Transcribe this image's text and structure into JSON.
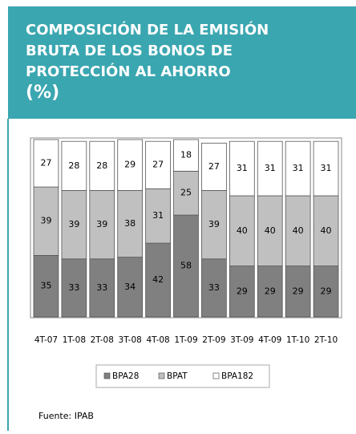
{
  "chart_data": {
    "type": "stacked_bar",
    "title_lines": [
      "COMPOSICIÓN DE LA EMISIÓN",
      "BRUTA DE LOS BONOS DE",
      "PROTECCIÓN AL AHORRO",
      "(%)"
    ],
    "categories": [
      "4T-07",
      "1T-08",
      "2T-08",
      "3T-08",
      "4T-08",
      "1T-09",
      "2T-09",
      "3T-09",
      "4T-09",
      "1T-10",
      "2T-10"
    ],
    "series": [
      {
        "name": "BPA28",
        "color": "#808080",
        "values": [
          35,
          33,
          33,
          34,
          42,
          58,
          33,
          29,
          29,
          29,
          29
        ]
      },
      {
        "name": "BPAT",
        "color": "#c0c0c0",
        "values": [
          39,
          39,
          39,
          38,
          31,
          25,
          39,
          40,
          40,
          40,
          40
        ]
      },
      {
        "name": "BPA182",
        "color": "#ffffff",
        "values": [
          27,
          28,
          28,
          29,
          27,
          18,
          27,
          31,
          31,
          31,
          31
        ]
      }
    ],
    "ylim": [
      0,
      101
    ],
    "source": "Fuente: IPAB"
  }
}
